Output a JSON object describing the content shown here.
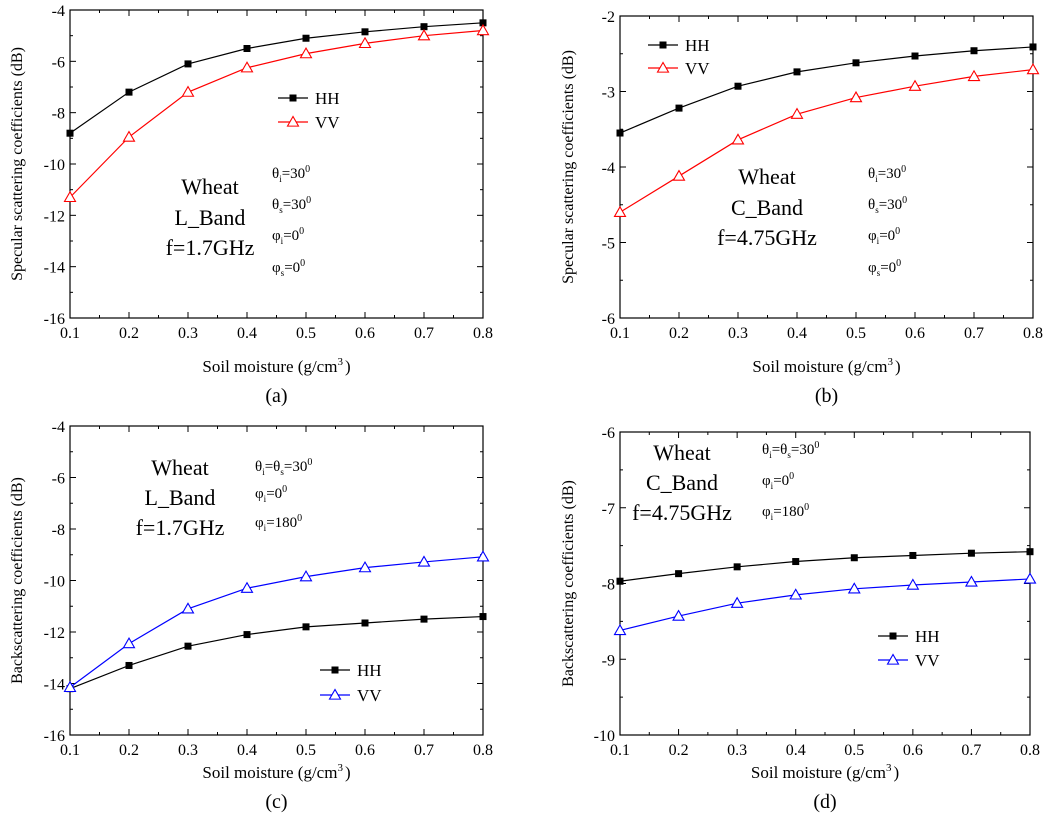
{
  "chart_data": [
    {
      "type": "line",
      "caption": "(a)",
      "xlabel": "Soil moisture (g/cm",
      "xlabel_sup": "3",
      "xlabel_tail": ")",
      "ylabel": "Specular scattering coefficients (dB)",
      "xlim": [
        0.1,
        0.8
      ],
      "ylim": [
        -16,
        -4
      ],
      "xticks": [
        "0.1",
        "0.2",
        "0.3",
        "0.4",
        "0.5",
        "0.6",
        "0.7",
        "0.8"
      ],
      "yticks": [
        "-16",
        "-14",
        "-12",
        "-10",
        "-8",
        "-6",
        "-4"
      ],
      "x": [
        0.1,
        0.2,
        0.3,
        0.4,
        0.5,
        0.6,
        0.7,
        0.8
      ],
      "series": [
        {
          "name": "HH",
          "color": "#000000",
          "marker": "square",
          "values": [
            -8.8,
            -7.2,
            -6.1,
            -5.5,
            -5.1,
            -4.85,
            -4.65,
            -4.5
          ]
        },
        {
          "name": "VV",
          "color": "#ff0000",
          "marker": "triangle",
          "values": [
            -11.3,
            -8.95,
            -7.2,
            -6.25,
            -5.7,
            -5.3,
            -5.0,
            -4.8
          ]
        }
      ],
      "legend_position": "middle-right",
      "annotation_lines": [
        "Wheat",
        "L_Band",
        "f=1.7GHz"
      ],
      "angle_lines": [
        {
          "sym": "θ",
          "sub": "i",
          "val": "=30",
          "sup": "0"
        },
        {
          "sym": "θ",
          "sub": "s",
          "val": "=30",
          "sup": "0"
        },
        {
          "sym": "φ",
          "sub": "i",
          "val": "=0",
          "sup": "0"
        },
        {
          "sym": "φ",
          "sub": "s",
          "val": "=0",
          "sup": "0"
        }
      ]
    },
    {
      "type": "line",
      "caption": "(b)",
      "xlabel": "Soil moisture (g/cm",
      "xlabel_sup": "3",
      "xlabel_tail": ")",
      "ylabel": "Specular scattering coefficients (dB)",
      "xlim": [
        0.1,
        0.8
      ],
      "ylim": [
        -6,
        -2
      ],
      "xticks": [
        "0.1",
        "0.2",
        "0.3",
        "0.4",
        "0.5",
        "0.6",
        "0.7",
        "0.8"
      ],
      "yticks": [
        "-6",
        "-5",
        "-4",
        "-3",
        "-2"
      ],
      "x": [
        0.1,
        0.2,
        0.3,
        0.4,
        0.5,
        0.6,
        0.7,
        0.8
      ],
      "series": [
        {
          "name": "HH",
          "color": "#000000",
          "marker": "square",
          "values": [
            -3.55,
            -3.22,
            -2.93,
            -2.74,
            -2.62,
            -2.53,
            -2.46,
            -2.41
          ]
        },
        {
          "name": "VV",
          "color": "#ff0000",
          "marker": "triangle",
          "values": [
            -4.6,
            -4.12,
            -3.64,
            -3.3,
            -3.08,
            -2.93,
            -2.8,
            -2.71
          ]
        }
      ],
      "legend_position": "top-left",
      "annotation_lines": [
        "Wheat",
        "C_Band",
        "f=4.75GHz"
      ],
      "angle_lines": [
        {
          "sym": "θ",
          "sub": "i",
          "val": "=30",
          "sup": "0"
        },
        {
          "sym": "θ",
          "sub": "s",
          "val": "=30",
          "sup": "0"
        },
        {
          "sym": "φ",
          "sub": "i",
          "val": "=0",
          "sup": "0"
        },
        {
          "sym": "φ",
          "sub": "s",
          "val": "=0",
          "sup": "0"
        }
      ]
    },
    {
      "type": "line",
      "caption": "(c)",
      "xlabel": "Soil moisture (g/cm",
      "xlabel_sup": "3",
      "xlabel_tail": ")",
      "ylabel": "Backscattering coefficients (dB)",
      "xlim": [
        0.1,
        0.8
      ],
      "ylim": [
        -16,
        -4
      ],
      "xticks": [
        "0.1",
        "0.2",
        "0.3",
        "0.4",
        "0.5",
        "0.6",
        "0.7",
        "0.8"
      ],
      "yticks": [
        "-16",
        "-14",
        "-12",
        "-10",
        "-8",
        "-6",
        "-4"
      ],
      "x": [
        0.1,
        0.2,
        0.3,
        0.4,
        0.5,
        0.6,
        0.7,
        0.8
      ],
      "series": [
        {
          "name": "HH",
          "color": "#000000",
          "marker": "square",
          "values": [
            -14.2,
            -13.3,
            -12.55,
            -12.1,
            -11.8,
            -11.65,
            -11.5,
            -11.4
          ]
        },
        {
          "name": "VV",
          "color": "#0000ff",
          "marker": "triangle",
          "values": [
            -14.15,
            -12.45,
            -11.1,
            -10.3,
            -9.85,
            -9.5,
            -9.28,
            -9.08
          ]
        }
      ],
      "legend_position": "bottom-right",
      "annotation_lines": [
        "Wheat",
        "L_Band",
        "f=1.7GHz"
      ],
      "angle_lines": [
        {
          "sym": "θ",
          "sub": "i",
          "mid": "=θ",
          "sub2": "s",
          "val": "=30",
          "sup": "0"
        },
        {
          "sym": "φ",
          "sub": "i",
          "val": "=0",
          "sup": "0"
        },
        {
          "sym": "φ",
          "sub": "i",
          "val": "=180",
          "sup": "0"
        }
      ]
    },
    {
      "type": "line",
      "caption": "(d)",
      "xlabel": "Soil moisture (g/cm",
      "xlabel_sup": "3",
      "xlabel_tail": ")",
      "ylabel": "Backscattering coefficients (dB)",
      "xlim": [
        0.1,
        0.8
      ],
      "ylim": [
        -10,
        -6
      ],
      "xticks": [
        "0.1",
        "0.2",
        "0.3",
        "0.4",
        "0.5",
        "0.6",
        "0.7",
        "0.8"
      ],
      "yticks": [
        "-10",
        "-9",
        "-8",
        "-7",
        "-6"
      ],
      "x": [
        0.1,
        0.2,
        0.3,
        0.4,
        0.5,
        0.6,
        0.7,
        0.8
      ],
      "series": [
        {
          "name": "HH",
          "color": "#000000",
          "marker": "square",
          "values": [
            -7.97,
            -7.87,
            -7.78,
            -7.71,
            -7.66,
            -7.63,
            -7.6,
            -7.58
          ]
        },
        {
          "name": "VV",
          "color": "#0000ff",
          "marker": "triangle",
          "values": [
            -8.62,
            -8.43,
            -8.26,
            -8.15,
            -8.07,
            -8.02,
            -7.98,
            -7.94
          ]
        }
      ],
      "legend_position": "lower-right",
      "annotation_lines": [
        "Wheat",
        "C_Band",
        "f=4.75GHz"
      ],
      "angle_lines": [
        {
          "sym": "θ",
          "sub": "i",
          "mid": "=θ",
          "sub2": "s",
          "val": "=30",
          "sup": "0"
        },
        {
          "sym": "φ",
          "sub": "i",
          "val": "=0",
          "sup": "0"
        },
        {
          "sym": "φ",
          "sub": "i",
          "val": "=180",
          "sup": "0"
        }
      ]
    }
  ]
}
